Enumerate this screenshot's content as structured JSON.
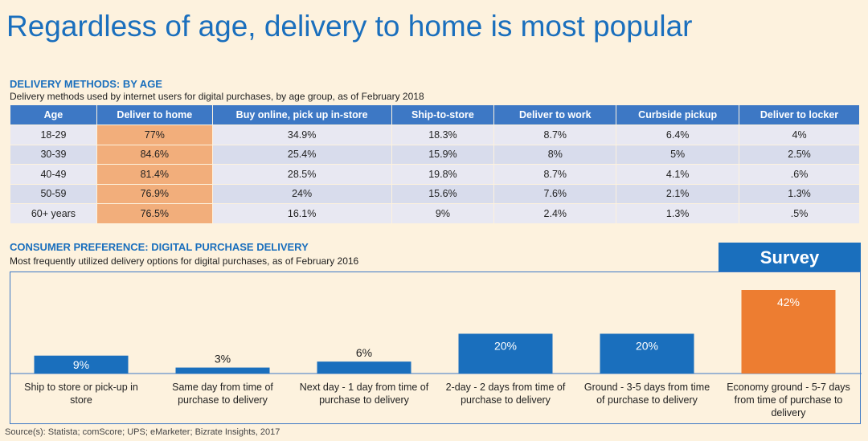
{
  "title": "Regardless of age, delivery to home is most popular",
  "section1": {
    "heading": "DELIVERY METHODS: BY AGE",
    "subtitle": "Delivery methods used by internet users for digital purchases, by age group, as of February 2018"
  },
  "table": {
    "headers": [
      "Age",
      "Deliver to home",
      "Buy online, pick up in-store",
      "Ship-to-store",
      "Deliver to work",
      "Curbside pickup",
      "Deliver to locker"
    ],
    "rows": [
      [
        "18-29",
        "77%",
        "34.9%",
        "18.3%",
        "8.7%",
        "6.4%",
        "4%"
      ],
      [
        "30-39",
        "84.6%",
        "25.4%",
        "15.9%",
        "8%",
        "5%",
        "2.5%"
      ],
      [
        "40-49",
        "81.4%",
        "28.5%",
        "19.8%",
        "8.7%",
        "4.1%",
        ".6%"
      ],
      [
        "50-59",
        "76.9%",
        "24%",
        "15.6%",
        "7.6%",
        "2.1%",
        "1.3%"
      ],
      [
        "60+ years",
        "76.5%",
        "16.1%",
        "9%",
        "2.4%",
        "1.3%",
        ".5%"
      ]
    ],
    "highlight_color": "#f2ae7b",
    "header_color": "#3d78c5"
  },
  "section2": {
    "heading": "CONSUMER PREFERENCE: DIGITAL PURCHASE DELIVERY",
    "subtitle": "Most frequently utilized delivery options for digital purchases, as of February 2016"
  },
  "survey_label": "Survey",
  "chart_data": {
    "type": "bar",
    "categories": [
      "Ship to store or pick-up in store",
      "Same day from time of purchase to delivery",
      "Next day - 1 day from time of purchase to delivery",
      "2-day - 2 days from time of purchase to delivery",
      "Ground - 3-5 days from time of purchase to delivery",
      "Economy ground - 5-7 days from time of purchase to delivery"
    ],
    "category_lines": [
      [
        "Ship to store or pick-up in",
        "store"
      ],
      [
        "Same day from time of",
        "purchase to delivery"
      ],
      [
        "Next day - 1 day from time of",
        "purchase to delivery"
      ],
      [
        "2-day - 2 days from time of",
        "purchase to delivery"
      ],
      [
        "Ground - 3-5 days from time",
        "of purchase to delivery"
      ],
      [
        "Economy ground - 5-7 days",
        "from time of purchase to",
        "delivery"
      ]
    ],
    "values": [
      9,
      3,
      6,
      20,
      20,
      42
    ],
    "value_labels": [
      "9%",
      "3%",
      "6%",
      "20%",
      "20%",
      "42%"
    ],
    "colors": [
      "#1a6fbd",
      "#1a6fbd",
      "#1a6fbd",
      "#1a6fbd",
      "#1a6fbd",
      "#ed7d31"
    ],
    "ylim": [
      0,
      42
    ]
  },
  "source": "Source(s): Statista; comScore; UPS; eMarketer; Bizrate Insights, 2017"
}
